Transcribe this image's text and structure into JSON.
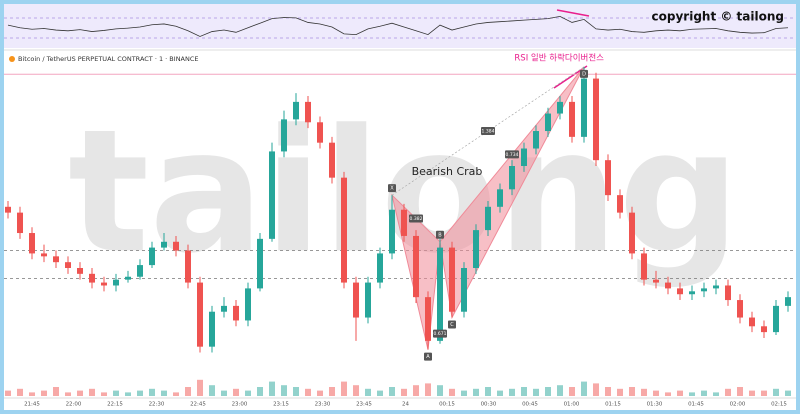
{
  "chart_data": {
    "type": "candlestick",
    "copyright": "copyright © tailong",
    "symbol": "Bitcoin / TetherUS PERPETUAL CONTRACT · 1 · BINANCE",
    "rsi_note": "RSI 일반 하락다이버전스",
    "watermark": "tailong",
    "pattern": {
      "name": "Bearish Crab",
      "color": "#f08a98",
      "points": [
        {
          "label": "X",
          "index": 32,
          "value": 60
        },
        {
          "label": "A",
          "index": 35,
          "value": 7
        },
        {
          "label": "B",
          "index": 36,
          "value": 44
        },
        {
          "label": "C",
          "index": 37,
          "value": 18
        },
        {
          "label": "D",
          "index": 48,
          "value": 104
        }
      ],
      "ratios": [
        "0.382",
        "0.671",
        "1.384",
        "0.734"
      ]
    },
    "x_labels": [
      "21:45",
      "22:00",
      "22:15",
      "22:30",
      "22:45",
      "23:00",
      "23:15",
      "23:30",
      "23:45",
      "24",
      "00:15",
      "00:30",
      "00:45",
      "01:00",
      "01:15",
      "01:30",
      "01:45",
      "02:00",
      "02:15"
    ],
    "ylim": [
      0,
      105
    ],
    "levels": [
      41,
      31.4
    ],
    "resistance": 101.5,
    "up_color": "#26a69a",
    "down_color": "#ef5350",
    "candles": [
      [
        56,
        58,
        52,
        54
      ],
      [
        54,
        56,
        45,
        47
      ],
      [
        47,
        49,
        38,
        40
      ],
      [
        40,
        43,
        37,
        39
      ],
      [
        39,
        41,
        35,
        37
      ],
      [
        37,
        39,
        33,
        35
      ],
      [
        35,
        37,
        31,
        33
      ],
      [
        33,
        35,
        28,
        30
      ],
      [
        30,
        32,
        27,
        29
      ],
      [
        29,
        33,
        27,
        31
      ],
      [
        31,
        34,
        30,
        32
      ],
      [
        32,
        38,
        31,
        36
      ],
      [
        36,
        44,
        35,
        42
      ],
      [
        42,
        47,
        41,
        44
      ],
      [
        44,
        46,
        39,
        41
      ],
      [
        41,
        43,
        28,
        30
      ],
      [
        30,
        32,
        6,
        8
      ],
      [
        8,
        22,
        6,
        20
      ],
      [
        20,
        25,
        18,
        22
      ],
      [
        22,
        24,
        15,
        17
      ],
      [
        17,
        30,
        15,
        28
      ],
      [
        28,
        47,
        27,
        45
      ],
      [
        45,
        78,
        44,
        75
      ],
      [
        75,
        89,
        73,
        86
      ],
      [
        86,
        95,
        84,
        92
      ],
      [
        92,
        94,
        83,
        85
      ],
      [
        85,
        87,
        76,
        78
      ],
      [
        78,
        80,
        64,
        66
      ],
      [
        66,
        68,
        28,
        30
      ],
      [
        30,
        32,
        10,
        18
      ],
      [
        18,
        32,
        16,
        30
      ],
      [
        30,
        42,
        28,
        40
      ],
      [
        40,
        60,
        38,
        55
      ],
      [
        55,
        57,
        44,
        46
      ],
      [
        46,
        48,
        23,
        25
      ],
      [
        25,
        27,
        7,
        10
      ],
      [
        10,
        45,
        9,
        42
      ],
      [
        42,
        44,
        18,
        20
      ],
      [
        20,
        37,
        18,
        35
      ],
      [
        35,
        50,
        33,
        48
      ],
      [
        48,
        58,
        46,
        56
      ],
      [
        56,
        64,
        54,
        62
      ],
      [
        62,
        72,
        60,
        70
      ],
      [
        70,
        78,
        68,
        76
      ],
      [
        76,
        84,
        74,
        82
      ],
      [
        82,
        90,
        80,
        88
      ],
      [
        88,
        94,
        86,
        92
      ],
      [
        92,
        94,
        78,
        80
      ],
      [
        80,
        104,
        78,
        100
      ],
      [
        100,
        102,
        70,
        72
      ],
      [
        72,
        74,
        58,
        60
      ],
      [
        60,
        62,
        52,
        54
      ],
      [
        54,
        56,
        38,
        40
      ],
      [
        40,
        42,
        29,
        31
      ],
      [
        31,
        34,
        28,
        30
      ],
      [
        30,
        32,
        26,
        28
      ],
      [
        28,
        30,
        24,
        26
      ],
      [
        26,
        29,
        24,
        27
      ],
      [
        27,
        30,
        25,
        28
      ],
      [
        28,
        31,
        26,
        29
      ],
      [
        29,
        31,
        22,
        24
      ],
      [
        24,
        26,
        16,
        18
      ],
      [
        18,
        20,
        13,
        15
      ],
      [
        15,
        17,
        11,
        13
      ],
      [
        13,
        24,
        12,
        22
      ],
      [
        22,
        27,
        20,
        25
      ]
    ],
    "volumes": [
      3,
      4,
      2,
      3,
      5,
      2,
      3,
      4,
      2,
      3,
      2,
      3,
      4,
      3,
      2,
      5,
      9,
      6,
      3,
      4,
      3,
      5,
      8,
      6,
      5,
      4,
      3,
      5,
      8,
      6,
      4,
      3,
      5,
      4,
      6,
      7,
      6,
      4,
      3,
      4,
      5,
      3,
      4,
      5,
      4,
      5,
      6,
      5,
      8,
      7,
      5,
      4,
      5,
      4,
      3,
      2,
      3,
      2,
      3,
      2,
      4,
      5,
      3,
      3,
      4,
      3
    ],
    "rsi": [
      55,
      48,
      44,
      46,
      42,
      40,
      43,
      38,
      41,
      45,
      47,
      50,
      56,
      58,
      52,
      40,
      25,
      38,
      42,
      36,
      48,
      60,
      72,
      75,
      74,
      62,
      58,
      50,
      32,
      30,
      45,
      52,
      60,
      50,
      40,
      30,
      55,
      42,
      50,
      58,
      62,
      64,
      66,
      68,
      70,
      72,
      78,
      62,
      70,
      45,
      42,
      44,
      38,
      36,
      40,
      42,
      40,
      44,
      45,
      46,
      40,
      36,
      34,
      35,
      46,
      48
    ]
  }
}
